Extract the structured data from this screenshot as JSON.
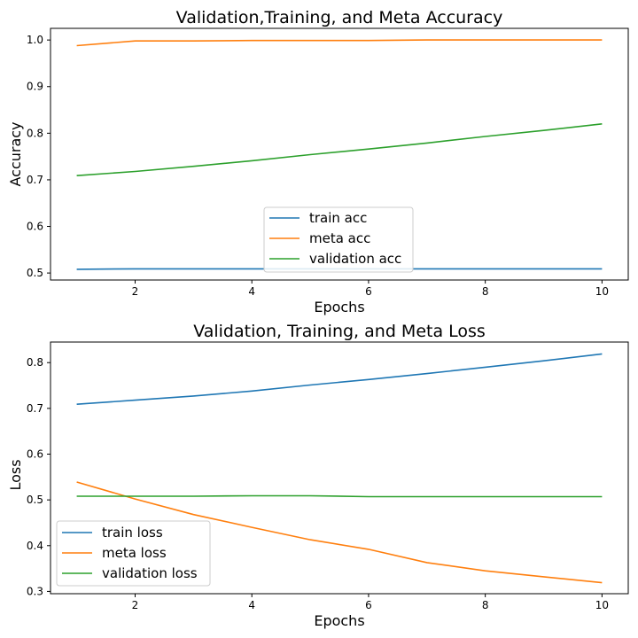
{
  "chart_data": [
    {
      "type": "line",
      "title": "Validation,Training, and Meta Accuracy",
      "xlabel": "Epochs",
      "ylabel": "Accuracy",
      "x": [
        1,
        2,
        3,
        4,
        5,
        6,
        7,
        8,
        9,
        10
      ],
      "xlim": [
        0.55,
        10.45
      ],
      "ylim": [
        0.485,
        1.025
      ],
      "xticks": [
        2,
        4,
        6,
        8,
        10
      ],
      "yticks": [
        0.5,
        0.6,
        0.7,
        0.8,
        0.9,
        1.0
      ],
      "ytick_labels": [
        "0.5",
        "0.6",
        "0.7",
        "0.8",
        "0.9",
        "1.0"
      ],
      "legend_loc": "lower center",
      "series": [
        {
          "name": "train acc",
          "color": "#1f77b4",
          "values": [
            0.508,
            0.509,
            0.509,
            0.509,
            0.509,
            0.509,
            0.509,
            0.509,
            0.509,
            0.509
          ]
        },
        {
          "name": "meta acc",
          "color": "#ff7f0e",
          "values": [
            0.988,
            0.998,
            0.998,
            0.999,
            0.999,
            0.999,
            1.0,
            1.0,
            1.0,
            1.0
          ]
        },
        {
          "name": "validation acc",
          "color": "#2ca02c",
          "values": [
            0.709,
            0.718,
            0.729,
            0.741,
            0.754,
            0.766,
            0.779,
            0.793,
            0.806,
            0.82
          ]
        }
      ]
    },
    {
      "type": "line",
      "title": "Validation, Training, and Meta Loss",
      "xlabel": "Epochs",
      "ylabel": "Loss",
      "x": [
        1,
        2,
        3,
        4,
        5,
        6,
        7,
        8,
        9,
        10
      ],
      "xlim": [
        0.55,
        10.45
      ],
      "ylim": [
        0.295,
        0.845
      ],
      "xticks": [
        2,
        4,
        6,
        8,
        10
      ],
      "yticks": [
        0.3,
        0.4,
        0.5,
        0.6,
        0.7,
        0.8
      ],
      "ytick_labels": [
        "0.3",
        "0.4",
        "0.5",
        "0.6",
        "0.7",
        "0.8"
      ],
      "legend_loc": "lower left",
      "series": [
        {
          "name": "train loss",
          "color": "#1f77b4",
          "values": [
            0.709,
            0.718,
            0.727,
            0.738,
            0.751,
            0.763,
            0.776,
            0.79,
            0.804,
            0.819
          ]
        },
        {
          "name": "meta loss",
          "color": "#ff7f0e",
          "values": [
            0.539,
            0.502,
            0.468,
            0.44,
            0.413,
            0.392,
            0.363,
            0.345,
            0.332,
            0.319
          ]
        },
        {
          "name": "validation loss",
          "color": "#2ca02c",
          "values": [
            0.508,
            0.508,
            0.508,
            0.509,
            0.509,
            0.507,
            0.507,
            0.507,
            0.507,
            0.507
          ]
        }
      ]
    }
  ]
}
